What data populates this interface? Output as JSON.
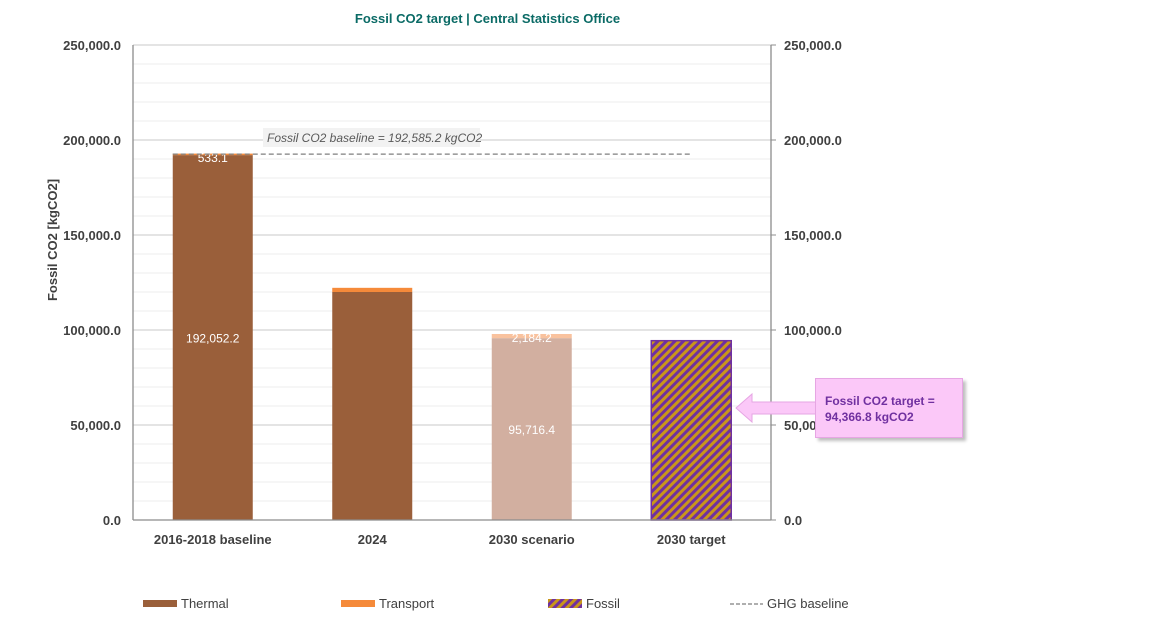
{
  "chart_data": {
    "type": "bar",
    "stacked": true,
    "title": "Fossil CO2 target  |  Central Statistics Office",
    "ylabel": "Fossil CO2 [kgCO2]",
    "xlabel": "",
    "ylim": [
      0,
      250000
    ],
    "y_ticks": [
      "0.0",
      "50,000.0",
      "100,000.0",
      "150,000.0",
      "200,000.0",
      "250,000.0"
    ],
    "y_tick_values": [
      0,
      50000,
      100000,
      150000,
      200000,
      250000
    ],
    "minor_grid_step": 10000,
    "categories": [
      "2016-2018 baseline",
      "2024",
      "2030 scenario",
      "2030 target"
    ],
    "series": [
      {
        "name": "Thermal",
        "color": "#9a5f3a",
        "values": [
          192052.2,
          120000,
          95716.4,
          null
        ],
        "labels": [
          "192,052.2",
          "",
          "95,716.4",
          ""
        ]
      },
      {
        "name": "Transport",
        "color": "#f58a3a",
        "values": [
          533.1,
          2200,
          2184.2,
          null
        ],
        "labels": [
          "533.1",
          "",
          "2,184.2",
          ""
        ]
      },
      {
        "name": "Fossil",
        "color": "#7030a0",
        "pattern_color": "#c9961a",
        "values": [
          null,
          null,
          null,
          94366.8
        ],
        "labels": [
          "",
          "",
          "",
          ""
        ]
      }
    ],
    "scenario_fade_color_thermal": "#d2afa0",
    "scenario_fade_color_transport": "#f9c29e",
    "baseline": {
      "name": "GHG baseline",
      "value": 192585.2,
      "label": "Fossil CO2 baseline = 192,585.2 kgCO2"
    },
    "annotation": {
      "text_line1": "Fossil CO2 target =",
      "text_line2": "94,366.8 kgCO2",
      "value": 94366.8
    },
    "legend": [
      "Thermal",
      "Transport",
      "Fossil",
      "GHG baseline"
    ],
    "legend_position": "bottom",
    "grid": true
  }
}
